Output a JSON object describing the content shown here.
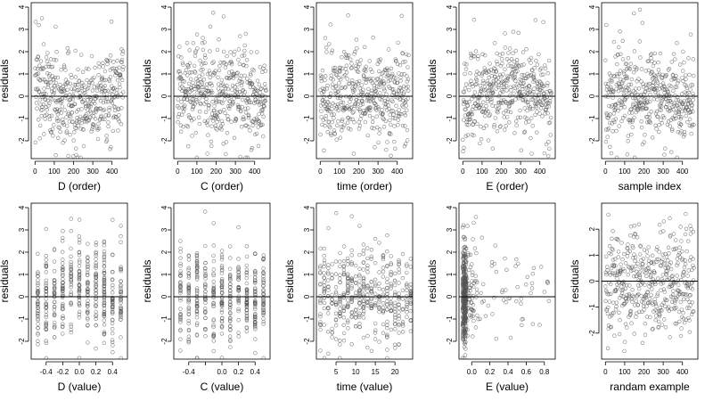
{
  "chart_data": [
    {
      "type": "scatter",
      "xlabel": "D (order)",
      "ylabel": "residuals",
      "xlim": [
        -20,
        480
      ],
      "ylim": [
        -2.8,
        4.2
      ],
      "xticks": [
        0,
        100,
        200,
        300,
        400
      ],
      "xtick_labels": [
        "0",
        "100",
        "200",
        "300",
        "400"
      ],
      "yticks": [
        -2,
        -1,
        0,
        1,
        2,
        3,
        4
      ],
      "ytick_labels": [
        "-2",
        "-1",
        "0",
        "1",
        "2",
        "3",
        "4"
      ],
      "ref_line": 0,
      "pattern": "u_shape",
      "n_points": 460,
      "grid": false
    },
    {
      "type": "scatter",
      "xlabel": "C (order)",
      "ylabel": "residuals",
      "xlim": [
        -20,
        480
      ],
      "ylim": [
        -2.8,
        4.2
      ],
      "xticks": [
        0,
        100,
        200,
        300,
        400
      ],
      "xtick_labels": [
        "0",
        "100",
        "200",
        "300",
        "400"
      ],
      "yticks": [
        -2,
        -1,
        0,
        1,
        2,
        3,
        4
      ],
      "ytick_labels": [
        "-2",
        "-1",
        "0",
        "1",
        "2",
        "3",
        "4"
      ],
      "ref_line": 0,
      "pattern": "random",
      "n_points": 460,
      "grid": false
    },
    {
      "type": "scatter",
      "xlabel": "time (order)",
      "ylabel": "residuals",
      "xlim": [
        -20,
        480
      ],
      "ylim": [
        -2.8,
        4.2
      ],
      "xticks": [
        0,
        100,
        200,
        300,
        400
      ],
      "xtick_labels": [
        "0",
        "100",
        "200",
        "300",
        "400"
      ],
      "yticks": [
        -2,
        -1,
        0,
        1,
        2,
        3,
        4
      ],
      "ytick_labels": [
        "-2",
        "-1",
        "0",
        "1",
        "2",
        "3",
        "4"
      ],
      "ref_line": 0,
      "pattern": "random",
      "n_points": 460,
      "grid": false
    },
    {
      "type": "scatter",
      "xlabel": "E (order)",
      "ylabel": "residuals",
      "xlim": [
        -20,
        480
      ],
      "ylim": [
        -2.8,
        4.2
      ],
      "xticks": [
        0,
        100,
        200,
        300,
        400
      ],
      "xtick_labels": [
        "0",
        "100",
        "200",
        "300",
        "400"
      ],
      "yticks": [
        -2,
        -1,
        0,
        1,
        2,
        3,
        4
      ],
      "ytick_labels": [
        "-2",
        "-1",
        "0",
        "1",
        "2",
        "3",
        "4"
      ],
      "ref_line": 0,
      "pattern": "n_shape",
      "n_points": 460,
      "grid": false
    },
    {
      "type": "scatter",
      "xlabel": "sample index",
      "ylabel": "residuals",
      "xlim": [
        -20,
        480
      ],
      "ylim": [
        -2.8,
        4.2
      ],
      "xticks": [
        0,
        100,
        200,
        300,
        400
      ],
      "xtick_labels": [
        "0",
        "100",
        "200",
        "300",
        "400"
      ],
      "yticks": [
        -2,
        -1,
        0,
        1,
        2,
        3,
        4
      ],
      "ytick_labels": [
        "-2",
        "-1",
        "0",
        "1",
        "2",
        "3",
        "4"
      ],
      "ref_line": 0,
      "pattern": "random",
      "n_points": 460,
      "grid": false
    },
    {
      "type": "scatter",
      "xlabel": "D (value)",
      "ylabel": "residuals",
      "xlim": [
        -0.58,
        0.58
      ],
      "ylim": [
        -2.8,
        4.2
      ],
      "xticks": [
        -0.4,
        -0.2,
        0.0,
        0.2,
        0.4
      ],
      "xtick_labels": [
        "-0.4",
        "-0.2",
        "0.0",
        "0.2",
        "0.4"
      ],
      "yticks": [
        -2,
        -1,
        0,
        1,
        2,
        3,
        4
      ],
      "ytick_labels": [
        "-2",
        "-1",
        "0",
        "1",
        "2",
        "3",
        "4"
      ],
      "ref_line": 0,
      "pattern": "discrete_curved",
      "x_levels": [
        -0.5,
        -0.4,
        -0.3,
        -0.2,
        -0.1,
        0,
        0.1,
        0.2,
        0.3,
        0.4,
        0.5
      ],
      "n_points": 460,
      "grid": false
    },
    {
      "type": "scatter",
      "xlabel": "C (value)",
      "ylabel": "residuals",
      "xlim": [
        -0.58,
        0.58
      ],
      "ylim": [
        -2.8,
        4.2
      ],
      "xticks": [
        -0.4,
        -0.2,
        0.0,
        0.2,
        0.4
      ],
      "xtick_labels": [
        "-0.4",
        "",
        "0.0",
        "0.2",
        "0.4"
      ],
      "yticks": [
        -2,
        -1,
        0,
        1,
        2,
        3,
        4
      ],
      "ytick_labels": [
        "-2",
        "-1",
        "0",
        "1",
        "2",
        "3",
        "4"
      ],
      "ref_line": 0,
      "pattern": "discrete",
      "x_levels": [
        -0.5,
        -0.4,
        -0.3,
        -0.2,
        -0.1,
        0,
        0.1,
        0.2,
        0.3,
        0.4,
        0.5
      ],
      "n_points": 460,
      "grid": false
    },
    {
      "type": "scatter",
      "xlabel": "time (value)",
      "ylabel": "residuals",
      "xlim": [
        0,
        24.5
      ],
      "ylim": [
        -2.8,
        4.2
      ],
      "xticks": [
        5,
        10,
        15,
        20
      ],
      "xtick_labels": [
        "5",
        "10",
        "15",
        "20"
      ],
      "yticks": [
        -2,
        -1,
        0,
        1,
        2,
        3,
        4
      ],
      "ytick_labels": [
        "-2",
        "-1",
        "0",
        "1",
        "2",
        "3",
        "4"
      ],
      "ref_line": 0,
      "pattern": "discrete",
      "x_levels": [
        1,
        2,
        3,
        4,
        5,
        6,
        7,
        8,
        9,
        10,
        11,
        12,
        13,
        14,
        15,
        16,
        17,
        18,
        19,
        20,
        21,
        22,
        23,
        24
      ],
      "n_points": 460,
      "grid": false
    },
    {
      "type": "scatter",
      "xlabel": "E (value)",
      "ylabel": "residuals",
      "xlim": [
        -0.14,
        0.92
      ],
      "ylim": [
        -2.8,
        4.2
      ],
      "xticks": [
        0.0,
        0.2,
        0.4,
        0.6,
        0.8
      ],
      "xtick_labels": [
        "0.0",
        "0.2",
        "0.4",
        "0.6",
        "0.8"
      ],
      "yticks": [
        -2,
        -1,
        0,
        1,
        2,
        3,
        4
      ],
      "ytick_labels": [
        "-2",
        "-1",
        "0",
        "1",
        "2",
        "3",
        "4"
      ],
      "ref_line": 0,
      "pattern": "skewed",
      "n_points": 460,
      "grid": false
    },
    {
      "type": "scatter",
      "xlabel": "randam example",
      "ylabel": "residuals",
      "xlim": [
        -20,
        480
      ],
      "ylim": [
        -3.0,
        3.0
      ],
      "xticks": [
        0,
        100,
        200,
        300,
        400
      ],
      "xtick_labels": [
        "0",
        "100",
        "200",
        "300",
        "400"
      ],
      "yticks": [
        -2,
        -1,
        0,
        1,
        2
      ],
      "ytick_labels": [
        "-2",
        "-1",
        "0",
        "1",
        "2"
      ],
      "ref_line": 0,
      "pattern": "random",
      "n_points": 460,
      "grid": false
    }
  ],
  "style": {
    "point_color": "#555555",
    "axis_color": "#000000",
    "ref_line_color": "#000000",
    "background": "#ffffff"
  }
}
